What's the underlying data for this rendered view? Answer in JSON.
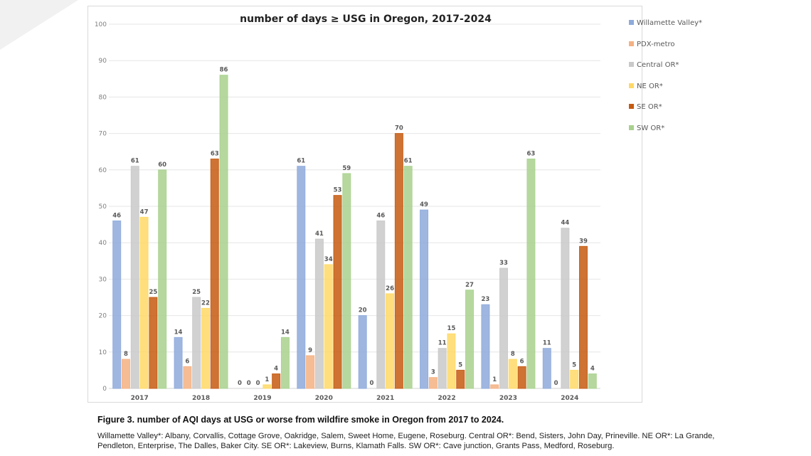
{
  "chart_data": {
    "type": "bar",
    "title": "number of days ≥ USG in Oregon, 2017-2024",
    "xlabel": "",
    "ylabel": "",
    "ylim": [
      0,
      100
    ],
    "yticks": [
      0,
      10,
      20,
      30,
      40,
      50,
      60,
      70,
      80,
      90,
      100
    ],
    "grid": true,
    "legend_position": "right",
    "categories": [
      "2017",
      "2018",
      "2019",
      "2020",
      "2021",
      "2022",
      "2023",
      "2024"
    ],
    "series": [
      {
        "name": "Willamette Valley*",
        "color": "#8eaadb",
        "values": [
          46,
          14,
          0,
          61,
          20,
          49,
          23,
          11
        ]
      },
      {
        "name": "PDX-metro",
        "color": "#f4b183",
        "values": [
          8,
          6,
          0,
          9,
          0,
          3,
          1,
          0
        ]
      },
      {
        "name": "Central OR*",
        "color": "#c9c9c9",
        "values": [
          61,
          25,
          0,
          41,
          46,
          11,
          33,
          44
        ]
      },
      {
        "name": "NE OR*",
        "color": "#ffd966",
        "values": [
          47,
          22,
          1,
          34,
          26,
          15,
          8,
          5
        ]
      },
      {
        "name": "SE OR*",
        "color": "#c55a11",
        "values": [
          25,
          63,
          4,
          53,
          70,
          5,
          6,
          39
        ]
      },
      {
        "name": "SW OR*",
        "color": "#a9d18e",
        "values": [
          60,
          86,
          14,
          59,
          61,
          27,
          63,
          4
        ]
      }
    ]
  },
  "caption": "Figure 3. number of AQI days at USG or worse from wildfire smoke in Oregon from 2017 to 2024.",
  "note": "Willamette Valley*: Albany, Corvallis, Cottage Grove, Oakridge, Salem, Sweet Home, Eugene, Roseburg. Central OR*: Bend, Sisters, John Day, Prineville. NE OR*: La Grande, Pendleton, Enterprise, The Dalles, Baker City. SE OR*: Lakeview, Burns, Klamath Falls. SW OR*: Cave junction, Grants Pass, Medford, Roseburg."
}
